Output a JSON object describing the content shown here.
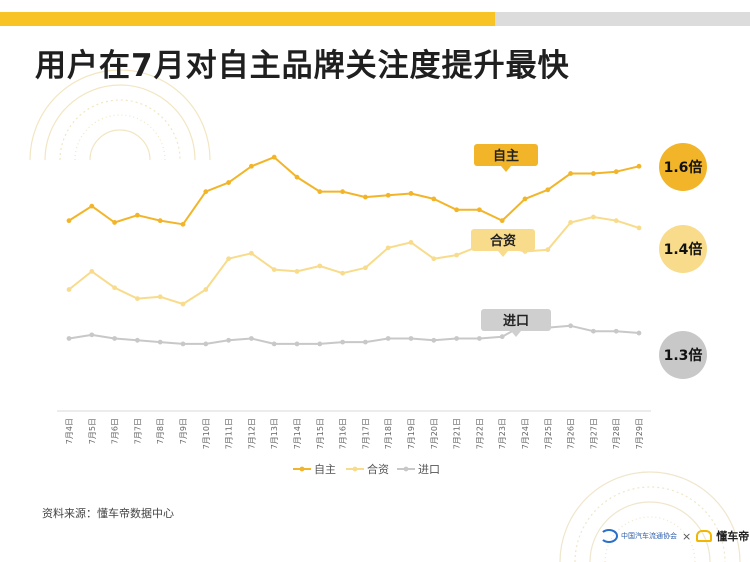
{
  "page": {
    "title": "用户在7月对自主品牌关注度提升最快",
    "source": "资料来源：懂车帝数据中心",
    "logo_left": "中国汽车流通协会",
    "logo_sep": "×",
    "logo_right": "懂车帝"
  },
  "colors": {
    "accent": "#f7c325",
    "gray_bar": "#dcdcdc"
  },
  "chart_data": {
    "type": "line",
    "x": [
      "7月4日",
      "7月5日",
      "7月6日",
      "7月7日",
      "7月8日",
      "7月9日",
      "7月10日",
      "7月11日",
      "7月12日",
      "7月13日",
      "7月14日",
      "7月15日",
      "7月16日",
      "7月17日",
      "7月18日",
      "7月19日",
      "7月20日",
      "7月21日",
      "7月22日",
      "7月23日",
      "7月24日",
      "7月25日",
      "7月26日",
      "7月27日",
      "7月28日",
      "7月29日"
    ],
    "series": [
      {
        "name": "自主",
        "color": "#f2b52a",
        "callout": "自主",
        "ratio": "1.6倍",
        "values": [
          1.05,
          1.13,
          1.04,
          1.08,
          1.05,
          1.03,
          1.21,
          1.26,
          1.35,
          1.4,
          1.29,
          1.21,
          1.21,
          1.18,
          1.19,
          1.2,
          1.17,
          1.11,
          1.11,
          1.05,
          1.17,
          1.22,
          1.31,
          1.31,
          1.32,
          1.35
        ]
      },
      {
        "name": "合资",
        "color": "#f8dc8c",
        "callout": "合资",
        "ratio": "1.4倍",
        "values": [
          0.67,
          0.77,
          0.68,
          0.62,
          0.63,
          0.59,
          0.67,
          0.84,
          0.87,
          0.78,
          0.77,
          0.8,
          0.76,
          0.79,
          0.9,
          0.93,
          0.84,
          0.86,
          0.91,
          0.91,
          0.88,
          0.89,
          1.04,
          1.07,
          1.05,
          1.01
        ]
      },
      {
        "name": "进口",
        "color": "#c8c8c8",
        "callout": "进口",
        "ratio": "1.3倍",
        "values": [
          0.4,
          0.42,
          0.4,
          0.39,
          0.38,
          0.37,
          0.37,
          0.39,
          0.4,
          0.37,
          0.37,
          0.37,
          0.38,
          0.38,
          0.4,
          0.4,
          0.39,
          0.4,
          0.4,
          0.41,
          0.48,
          0.46,
          0.47,
          0.44,
          0.44,
          0.43
        ]
      }
    ],
    "ylim": [
      0.0,
      1.55
    ],
    "grid": false,
    "legend": "bottom-center"
  }
}
